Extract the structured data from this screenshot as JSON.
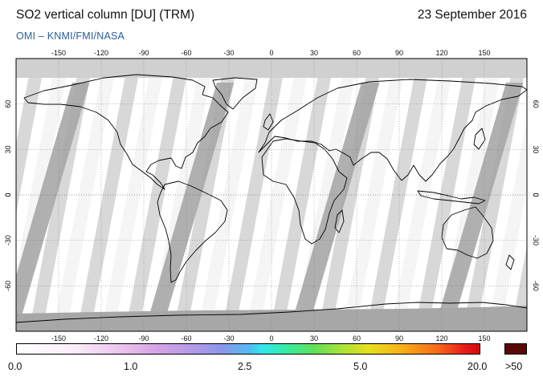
{
  "header": {
    "title": "SO2 vertical column [DU] (TRM)",
    "date": "23 September 2016",
    "credit": "OMI  –  KNMI/FMI/NASA"
  },
  "map": {
    "projection": "equirectangular",
    "lon_range": [
      -180,
      180
    ],
    "lat_range": [
      -90,
      90
    ],
    "lon_ticks": [
      -150,
      -120,
      -90,
      -60,
      -30,
      0,
      30,
      60,
      90,
      120,
      150
    ],
    "lat_ticks": [
      60,
      30,
      0,
      -30,
      -60
    ],
    "gridlines": true,
    "no_data_color": "#a7a7a7",
    "land_outline_color": "#000000",
    "polar_gray_color": "#d0d0d0"
  },
  "colorbar": {
    "labels": [
      "0.0",
      "1.0",
      "2.5",
      "5.0",
      "20.0",
      ">50"
    ],
    "overflow_color": "#5a0a06"
  }
}
